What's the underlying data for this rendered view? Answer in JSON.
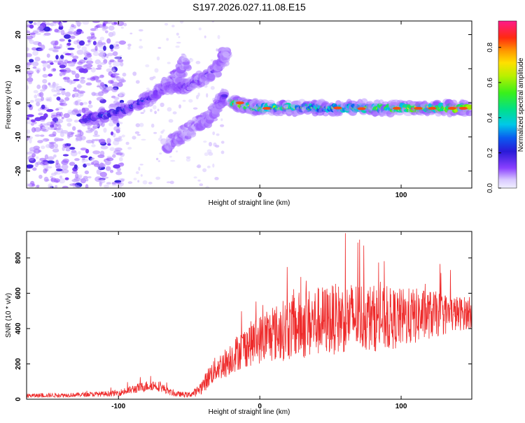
{
  "title": "S197.2026.027.11.08.E15",
  "chart_data": [
    {
      "type": "heatmap",
      "xlabel": "Height of straight line (km)",
      "ylabel": "Frequency (Hz)",
      "xlim": [
        -165,
        150
      ],
      "ylim": [
        -25,
        24
      ],
      "x_ticks": [
        -100,
        0,
        100
      ],
      "x_tick_labels": [
        "-100",
        "0",
        "100"
      ],
      "y_ticks": [
        -20,
        -10,
        0,
        10,
        20
      ],
      "y_tick_labels": [
        "-20",
        "-10",
        "0",
        "10",
        "20"
      ],
      "colorbar": {
        "label": "Normalized spectral amplitude",
        "range": [
          0,
          0.95
        ],
        "ticks": [
          0.0,
          0.2,
          0.4,
          0.6,
          0.8
        ],
        "tick_labels": [
          "0.0",
          "0.2",
          "0.4",
          "0.6",
          "0.8"
        ]
      },
      "features": [
        {
          "name": "main-band",
          "points": [
            [
              -20,
              0
            ],
            [
              0,
              -1.5
            ],
            [
              50,
              -1.5
            ],
            [
              100,
              -1.5
            ],
            [
              148,
              -1.5
            ]
          ],
          "amplitude": [
            0.9,
            0.7,
            0.55,
            0.8,
            0.9
          ]
        },
        {
          "name": "upper-streak",
          "points": [
            [
              -125,
              -5
            ],
            [
              -95,
              -2
            ],
            [
              -75,
              2
            ],
            [
              -58,
              8
            ],
            [
              -52,
              12
            ]
          ],
          "amplitude": [
            0.25,
            0.3,
            0.2,
            0.15,
            0.1
          ]
        },
        {
          "name": "lower-streak",
          "points": [
            [
              -68,
              5
            ],
            [
              -50,
              5
            ],
            [
              -30,
              10
            ],
            [
              -23,
              15
            ]
          ],
          "amplitude": [
            0.15,
            0.2,
            0.15,
            0.1
          ]
        },
        {
          "name": "branch-streak",
          "points": [
            [
              -67,
              -13
            ],
            [
              -50,
              -8
            ],
            [
              -35,
              -4
            ],
            [
              -25,
              2
            ]
          ],
          "amplitude": [
            0.1,
            0.1,
            0.12,
            0.2
          ]
        }
      ]
    },
    {
      "type": "line",
      "xlabel": "Height of straight line (km)",
      "ylabel": "SNR (10 * v/v)",
      "xlim": [
        -165,
        150
      ],
      "ylim": [
        0,
        950
      ],
      "x_ticks": [
        -100,
        0,
        100
      ],
      "x_tick_labels": [
        "-100",
        "0",
        "100"
      ],
      "y_ticks": [
        0,
        200,
        400,
        600,
        800
      ],
      "y_tick_labels": [
        "0",
        "200",
        "400",
        "600",
        "800"
      ],
      "series": [
        {
          "name": "SNR",
          "color": "#ee2a2a",
          "x": [
            -165,
            -150,
            -130,
            -110,
            -100,
            -95,
            -90,
            -85,
            -80,
            -75,
            -70,
            -65,
            -60,
            -50,
            -45,
            -40,
            -35,
            -30,
            -25,
            -20,
            -10,
            0,
            10,
            20,
            30,
            40,
            50,
            60,
            70,
            80,
            90,
            100,
            110,
            120,
            130,
            140,
            150
          ],
          "y": [
            20,
            22,
            25,
            30,
            35,
            45,
            55,
            65,
            75,
            80,
            70,
            45,
            30,
            25,
            40,
            80,
            140,
            180,
            200,
            240,
            300,
            340,
            370,
            400,
            420,
            440,
            450,
            460,
            470,
            460,
            450,
            460,
            470,
            480,
            480,
            485,
            490
          ],
          "spread": [
            12,
            12,
            12,
            15,
            18,
            22,
            25,
            28,
            30,
            30,
            28,
            20,
            15,
            15,
            25,
            45,
            65,
            75,
            85,
            95,
            120,
            140,
            160,
            180,
            200,
            200,
            200,
            200,
            200,
            190,
            180,
            170,
            160,
            140,
            120,
            100,
            90
          ]
        }
      ]
    }
  ]
}
